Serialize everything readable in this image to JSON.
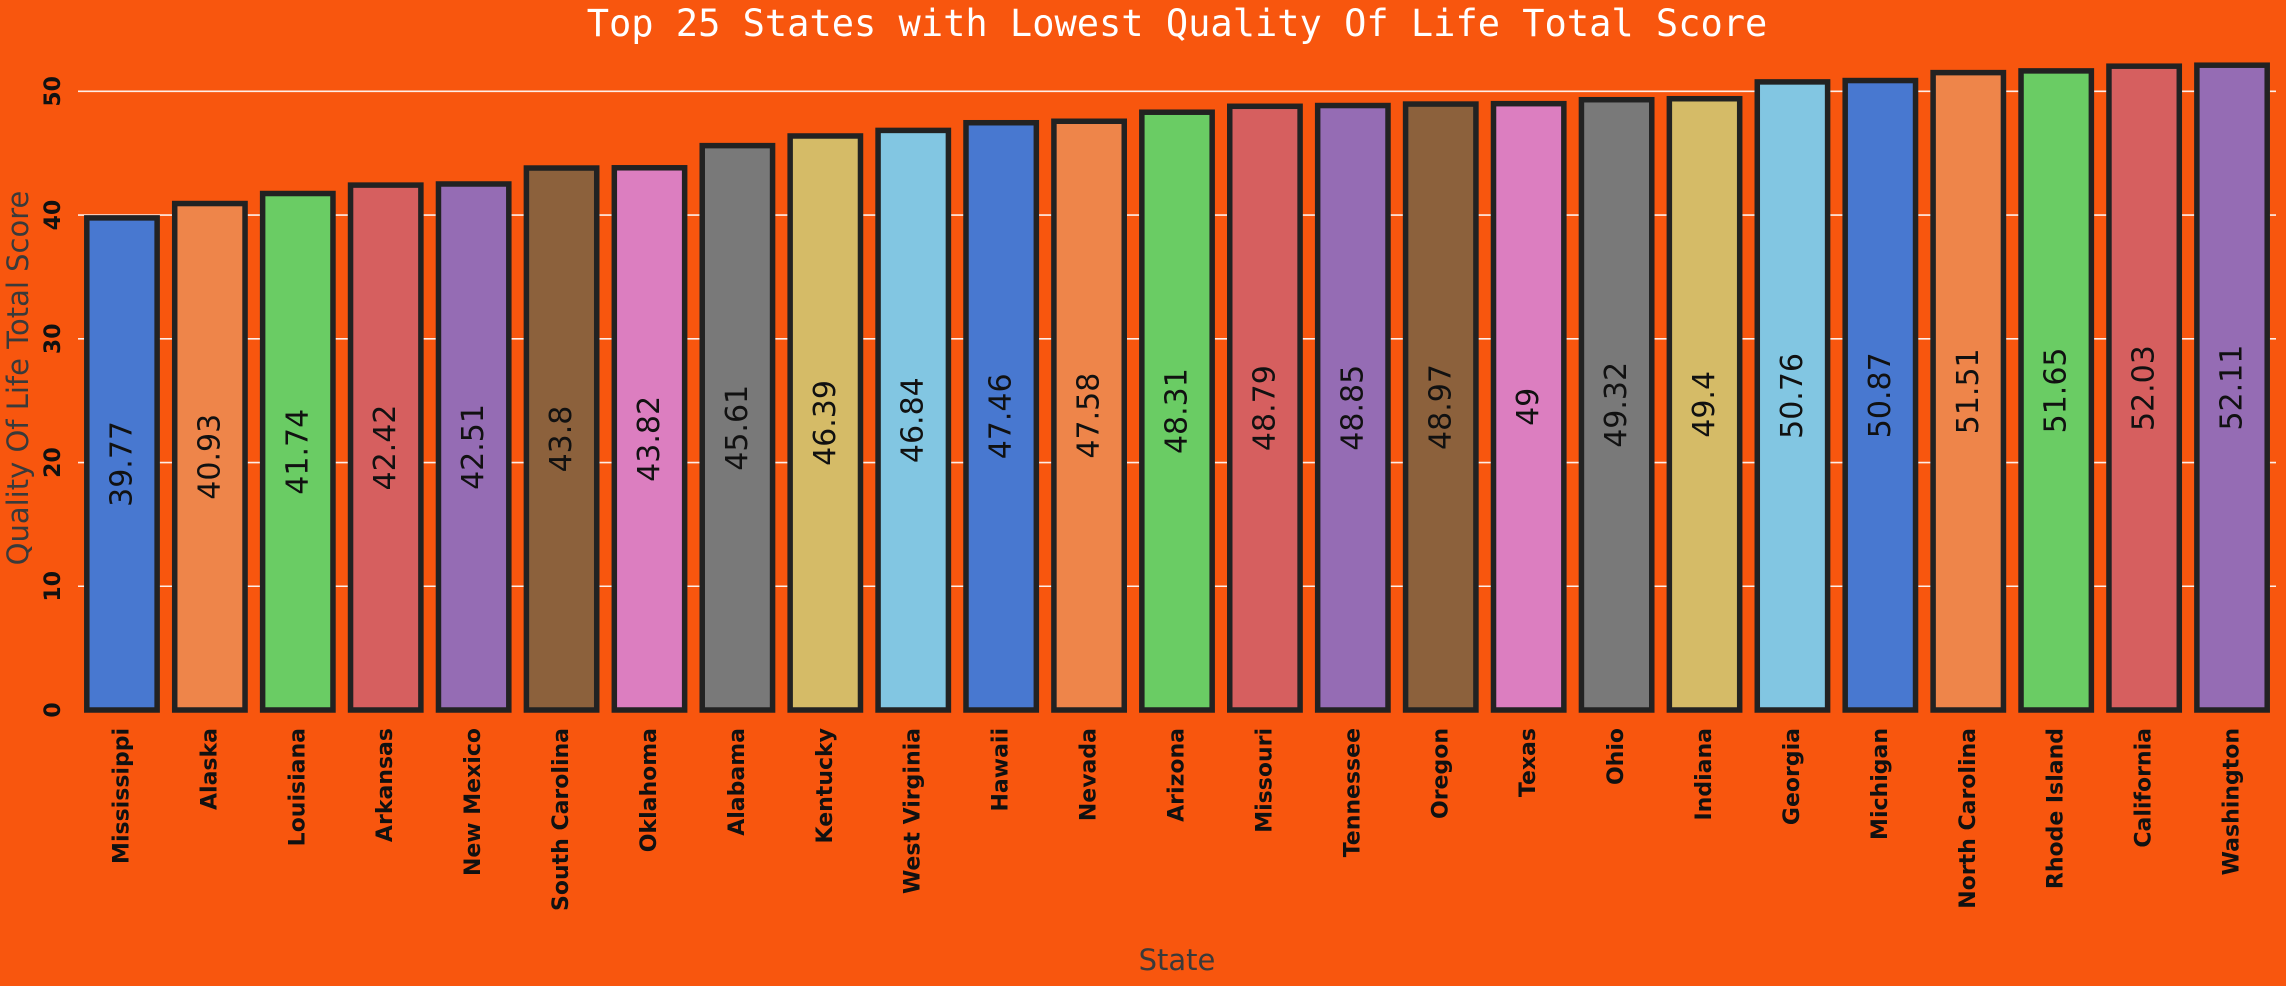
{
  "chart_data": {
    "type": "bar",
    "title": "Top 25 States with Lowest Quality Of Life Total Score",
    "xlabel": "State",
    "ylabel": "Quality Of Life Total Score",
    "ylim": [
      0,
      53.5
    ],
    "yticks": [
      0,
      10,
      20,
      30,
      40,
      50
    ],
    "grid": "horizontal",
    "categories": [
      "Mississippi",
      "Alaska",
      "Louisiana",
      "Arkansas",
      "New Mexico",
      "South Carolina",
      "Oklahoma",
      "Alabama",
      "Kentucky",
      "West Virginia",
      "Hawaii",
      "Nevada",
      "Arizona",
      "Missouri",
      "Tennessee",
      "Oregon",
      "Texas",
      "Ohio",
      "Indiana",
      "Georgia",
      "Michigan",
      "North Carolina",
      "Rhode Island",
      "California",
      "Washington"
    ],
    "values": [
      39.77,
      40.93,
      41.74,
      42.42,
      42.51,
      43.8,
      43.82,
      45.61,
      46.39,
      46.84,
      47.46,
      47.58,
      48.31,
      48.79,
      48.85,
      48.97,
      49,
      49.32,
      49.4,
      50.76,
      50.87,
      51.51,
      51.65,
      52.03,
      52.11
    ],
    "value_labels": [
      "39.77",
      "40.93",
      "41.74",
      "42.42",
      "42.51",
      "43.8",
      "43.82",
      "45.61",
      "46.39",
      "46.84",
      "47.46",
      "47.58",
      "48.31",
      "48.79",
      "48.85",
      "48.97",
      "49",
      "49.32",
      "49.4",
      "50.76",
      "50.87",
      "51.51",
      "51.65",
      "52.03",
      "52.11"
    ],
    "colors": [
      "#4878d0",
      "#ee854a",
      "#6acc64",
      "#d65f5f",
      "#956cb4",
      "#8c613c",
      "#dc7ec0",
      "#797979",
      "#d5bb67",
      "#82c6e2"
    ],
    "background": "#f8560e"
  }
}
